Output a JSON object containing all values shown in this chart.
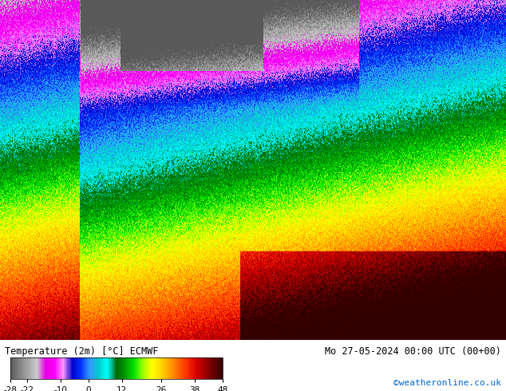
{
  "title_left": "Temperature (2m) [°C] ECMWF",
  "title_right": "Mo 27-05-2024 00:00 UTC (00+00)",
  "watermark": "©weatheronline.co.uk",
  "colorbar_ticks": [
    -28,
    -22,
    -10,
    0,
    12,
    26,
    38,
    48
  ],
  "colorbar_colors": [
    "#5a5a5a",
    "#808080",
    "#a0a0a0",
    "#c0c0c0",
    "#e0e0e0",
    "#cc00cc",
    "#ff00ff",
    "#ff66ff",
    "#0000cc",
    "#0033ff",
    "#3399ff",
    "#00cccc",
    "#00ffff",
    "#006600",
    "#009900",
    "#00cc00",
    "#00ff00",
    "#ccff00",
    "#ffff00",
    "#ffcc00",
    "#ff9900",
    "#ff6600",
    "#ff3300",
    "#cc0000",
    "#990000",
    "#660000",
    "#330000"
  ],
  "bg_color": "#ffffff",
  "map_bg": "#f0f0f0",
  "fig_width": 6.34,
  "fig_height": 4.9
}
